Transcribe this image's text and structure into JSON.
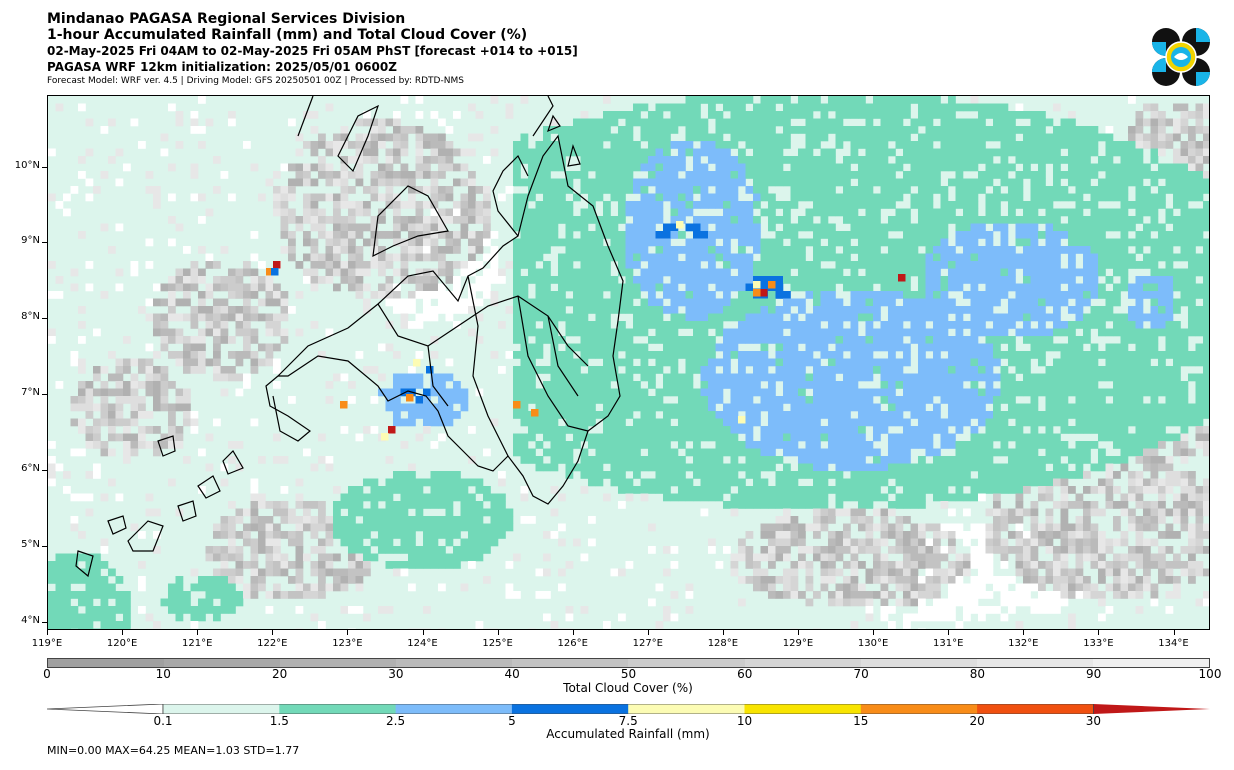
{
  "header": {
    "line1": "Mindanao PAGASA Regional Services Division",
    "line2": "1-hour Accumulated Rainfall (mm) and Total Cloud Cover (%)",
    "line3": "02-May-2025 Fri 04AM to 02-May-2025 Fri 05AM PhST [forecast +014 to +015]",
    "line4": "PAGASA WRF 12km initialization: 2025/05/01 0600Z",
    "line5": "Forecast Model: WRF ver. 4.5 | Driving Model: GFS 20250501 00Z | Processed by: RDTD-NMS"
  },
  "map": {
    "lat_labels": [
      "10°N",
      "9°N",
      "8°N",
      "7°N",
      "6°N",
      "5°N",
      "4°N"
    ],
    "lon_labels": [
      "119°E",
      "120°E",
      "121°E",
      "122°E",
      "123°E",
      "124°E",
      "125°E",
      "126°E",
      "127°E",
      "128°E",
      "129°E",
      "130°E",
      "131°E",
      "132°E",
      "133°E",
      "134°E"
    ]
  },
  "cloud_cover": {
    "ticks": [
      "0",
      "10",
      "20",
      "30",
      "40",
      "50",
      "60",
      "70",
      "80",
      "90",
      "100"
    ],
    "label": "Total Cloud Cover (%)",
    "colors": [
      "#a0a0a0",
      "#a8a8a8",
      "#b1b1b1",
      "#bababa",
      "#c3c3c3",
      "#cccccc",
      "#d5d5d5",
      "#dedede",
      "#e7e7e7",
      "#f0f0f0"
    ]
  },
  "rainfall": {
    "ticks": [
      "0.1",
      "1.5",
      "2.5",
      "5",
      "7.5",
      "10",
      "15",
      "20",
      "30"
    ],
    "label": "Accumulated Rainfall (mm)",
    "colors": [
      "#dcf5ec",
      "#72d9b8",
      "#7dbcfa",
      "#0a72e0",
      "#fcfcb4",
      "#f8e400",
      "#f88c18",
      "#f05010",
      "#c01818"
    ]
  },
  "stats": "MIN=0.00   MAX=64.25   MEAN=1.03   STD=1.77"
}
